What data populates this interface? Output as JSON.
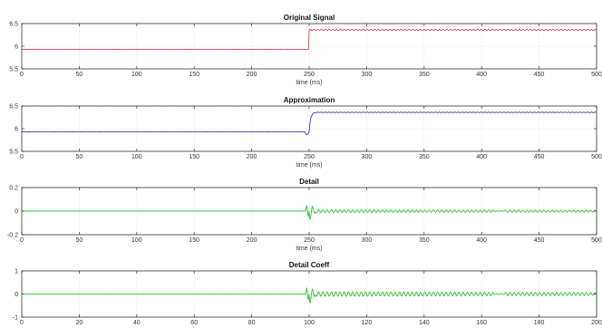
{
  "chart_data": [
    {
      "type": "line",
      "title": "Original Signal",
      "xlabel": "time (ms)",
      "ylabel": "",
      "xlim": [
        0,
        500
      ],
      "ylim": [
        5.5,
        6.5
      ],
      "xticks": [
        0,
        50,
        100,
        150,
        200,
        250,
        300,
        350,
        400,
        450,
        500
      ],
      "yticks": [
        5.5,
        6,
        6.5
      ],
      "grid": true,
      "series": [
        {
          "color": "#d94050",
          "kind": "step",
          "step_at": 250,
          "before": 5.93,
          "after": 6.36,
          "transient": false,
          "ripple_before": 0.004,
          "ripple_after": 0.012
        }
      ]
    },
    {
      "type": "line",
      "title": "Approximation",
      "xlabel": "time (ms)",
      "ylabel": "",
      "xlim": [
        0,
        500
      ],
      "ylim": [
        5.5,
        6.5
      ],
      "xticks": [
        0,
        50,
        100,
        150,
        200,
        250,
        300,
        350,
        400,
        450,
        500
      ],
      "yticks": [
        5.5,
        6,
        6.5
      ],
      "grid": true,
      "series": [
        {
          "color": "#3a3aa8",
          "kind": "step",
          "step_at": 250,
          "before": 5.93,
          "after": 6.36,
          "transient": true,
          "ripple_before": 0.003,
          "ripple_after": 0.006
        }
      ]
    },
    {
      "type": "line",
      "title": "Detail",
      "xlabel": "time (ms)",
      "ylabel": "",
      "xlim": [
        0,
        500
      ],
      "ylim": [
        -0.2,
        0.2
      ],
      "xticks": [
        0,
        50,
        100,
        150,
        200,
        250,
        300,
        350,
        400,
        450,
        500
      ],
      "yticks": [
        -0.2,
        0,
        0.2
      ],
      "grid": true,
      "series": [
        {
          "color": "#2ec42e",
          "kind": "detail",
          "event_at": 250,
          "spike": 0.1,
          "ripple_after": 0.012
        }
      ]
    },
    {
      "type": "line",
      "title": "Detail Coeff",
      "xlabel": "",
      "ylabel": "",
      "xlim": [
        0,
        200
      ],
      "ylim": [
        -1,
        1
      ],
      "xticks": [
        0,
        20,
        40,
        60,
        80,
        100,
        120,
        140,
        160,
        180,
        200
      ],
      "yticks": [
        -1,
        0,
        1
      ],
      "grid": true,
      "series": [
        {
          "color": "#2ec42e",
          "kind": "detail",
          "event_at": 100,
          "spike": 0.55,
          "ripple_after": 0.1
        }
      ]
    }
  ]
}
